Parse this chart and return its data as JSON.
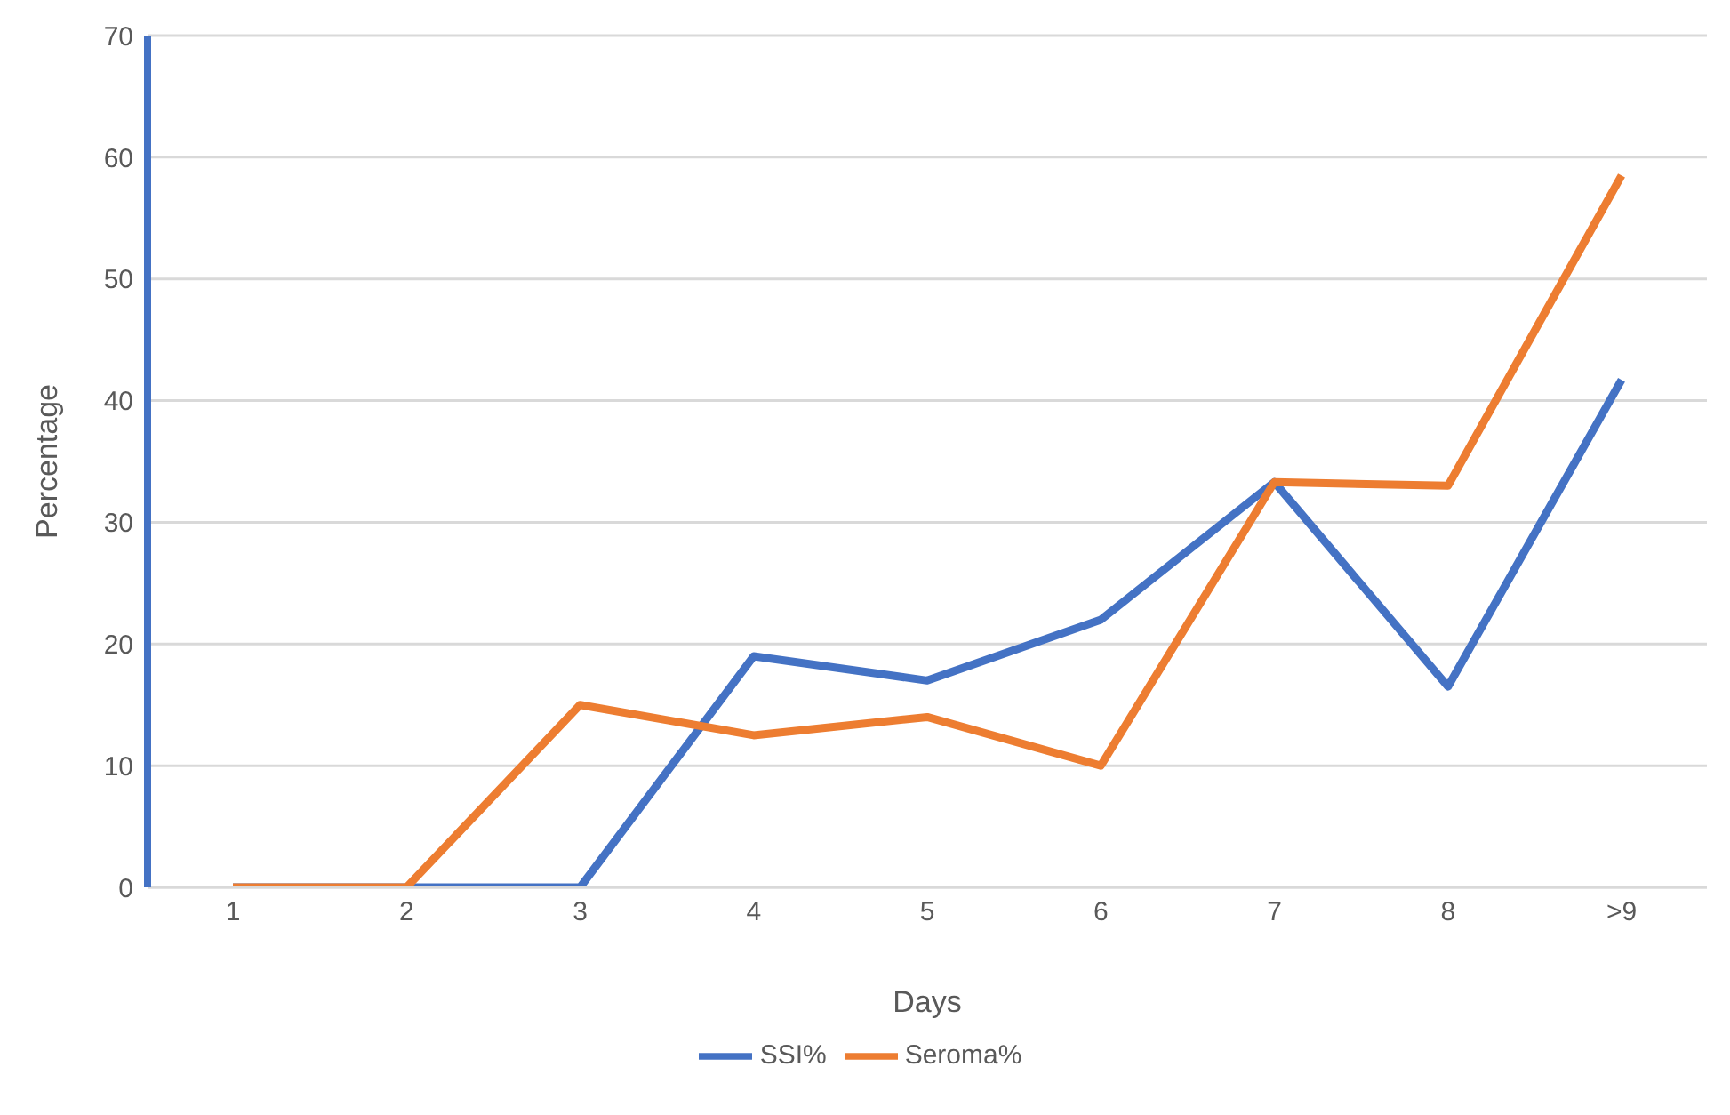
{
  "chart_data": {
    "type": "line",
    "xlabel": "Days",
    "ylabel": "Percentage",
    "categories": [
      "1",
      "2",
      "3",
      "4",
      "5",
      "6",
      "7",
      "8",
      ">9"
    ],
    "series": [
      {
        "name": "SSI%",
        "color": "#4472c4",
        "values": [
          0,
          0,
          0,
          19,
          17,
          22,
          33.3,
          16.5,
          41.7
        ]
      },
      {
        "name": "Seroma%",
        "color": "#ed7d31",
        "values": [
          0,
          0,
          15,
          12.5,
          14,
          10,
          33.3,
          33,
          58.5
        ]
      }
    ],
    "ylim": [
      0,
      70
    ],
    "yticks": [
      0,
      10,
      20,
      30,
      40,
      50,
      60,
      70
    ],
    "grid": "y",
    "legend": "bottom",
    "marker": "none",
    "line_style": "solid"
  }
}
